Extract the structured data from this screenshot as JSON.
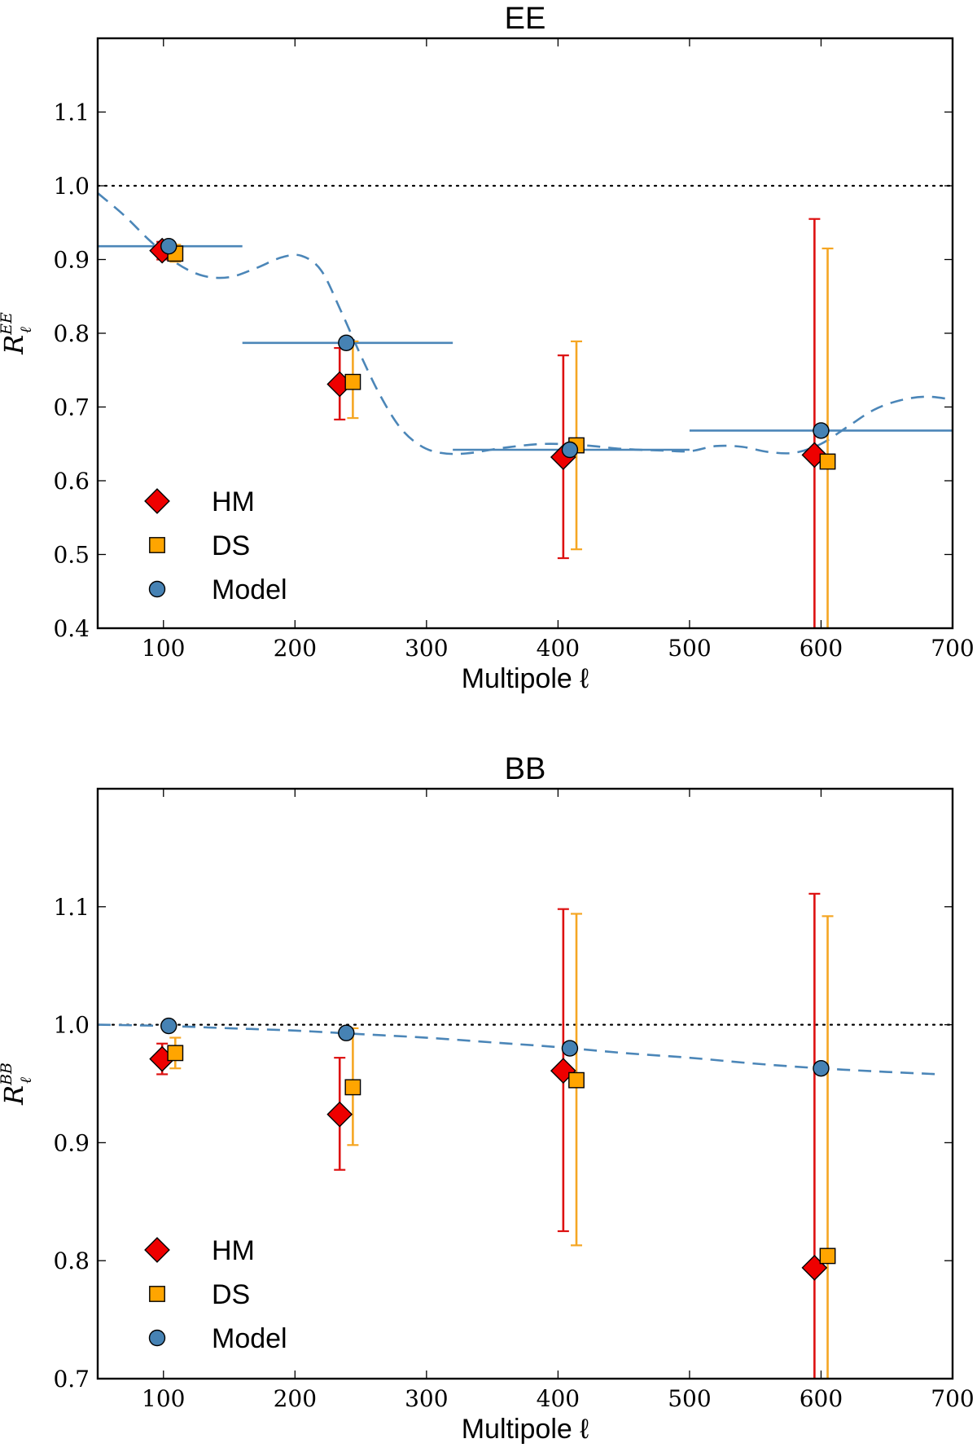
{
  "colors": {
    "hm": "#ee0000",
    "hm_err": "#dd1111",
    "ds": "#ffa500",
    "ds_err": "#f5a623",
    "model": "#4682b4",
    "model_line": "#4b86b8",
    "edge": "#000000"
  },
  "chart_data": [
    {
      "type": "scatter",
      "title": "EE",
      "xlabel": "Multipole ℓ",
      "ylabel": "R",
      "ylabel_sup": "EE",
      "ylabel_sub": "ℓ",
      "xlim": [
        50,
        700
      ],
      "ylim": [
        0.4,
        1.2
      ],
      "xticks": [
        100,
        200,
        300,
        400,
        500,
        600,
        700
      ],
      "xtick_labels": [
        "100",
        "200",
        "300",
        "400",
        "500",
        "600",
        "700"
      ],
      "yticks": [
        0.4,
        0.5,
        0.6,
        0.7,
        0.8,
        0.9,
        1.0,
        1.1
      ],
      "ytick_labels": [
        "0.4",
        "0.5",
        "0.6",
        "0.7",
        "0.8",
        "0.9",
        "1.0",
        "1.1"
      ],
      "reference_line": 1.0,
      "legend": [
        "HM",
        "DS",
        "Model"
      ],
      "legend_position": "lower-left",
      "series": [
        {
          "name": "HM",
          "marker": "diamond",
          "x": [
            99,
            234,
            404,
            595
          ],
          "y": [
            0.912,
            0.731,
            0.632,
            0.635
          ],
          "yerr_low": [
            0.9,
            0.683,
            0.495,
            0.395
          ],
          "yerr_high": [
            0.924,
            0.78,
            0.77,
            0.955
          ]
        },
        {
          "name": "DS",
          "marker": "square",
          "x": [
            109,
            244,
            414,
            605
          ],
          "y": [
            0.908,
            0.734,
            0.648,
            0.626
          ],
          "yerr_low": [
            0.897,
            0.685,
            0.507,
            0.395
          ],
          "yerr_high": [
            0.92,
            0.789,
            0.789,
            0.915
          ]
        },
        {
          "name": "Model",
          "marker": "circle",
          "x": [
            104,
            239,
            409,
            600
          ],
          "y": [
            0.918,
            0.787,
            0.642,
            0.668
          ],
          "bins": [
            [
              50,
              160
            ],
            [
              160,
              320
            ],
            [
              320,
              500
            ],
            [
              500,
              700
            ]
          ]
        }
      ],
      "model_curve": {
        "x": [
          50,
          70,
          90,
          110,
          130,
          150,
          170,
          190,
          205,
          220,
          235,
          250,
          265,
          280,
          295,
          310,
          330,
          360,
          390,
          420,
          450,
          480,
          500,
          520,
          540,
          560,
          580,
          600,
          620,
          640,
          660,
          680,
          700
        ],
        "y": [
          0.99,
          0.96,
          0.925,
          0.895,
          0.878,
          0.876,
          0.888,
          0.903,
          0.905,
          0.885,
          0.83,
          0.77,
          0.715,
          0.672,
          0.648,
          0.638,
          0.637,
          0.645,
          0.65,
          0.648,
          0.643,
          0.641,
          0.64,
          0.647,
          0.646,
          0.639,
          0.638,
          0.65,
          0.673,
          0.696,
          0.709,
          0.714,
          0.71
        ]
      }
    },
    {
      "type": "scatter",
      "title": "BB",
      "xlabel": "Multipole ℓ",
      "ylabel": "R",
      "ylabel_sup": "BB",
      "ylabel_sub": "ℓ",
      "xlim": [
        50,
        700
      ],
      "ylim": [
        0.7,
        1.2
      ],
      "xticks": [
        100,
        200,
        300,
        400,
        500,
        600,
        700
      ],
      "xtick_labels": [
        "100",
        "200",
        "300",
        "400",
        "500",
        "600",
        "700"
      ],
      "yticks": [
        0.7,
        0.8,
        0.9,
        1.0,
        1.1
      ],
      "ytick_labels": [
        "0.7",
        "0.8",
        "0.9",
        "1.0",
        "1.1"
      ],
      "reference_line": 1.0,
      "legend": [
        "HM",
        "DS",
        "Model"
      ],
      "legend_position": "lower-left",
      "series": [
        {
          "name": "HM",
          "marker": "diamond",
          "x": [
            99,
            234,
            404,
            595
          ],
          "y": [
            0.971,
            0.924,
            0.961,
            0.794
          ],
          "yerr_low": [
            0.958,
            0.877,
            0.825,
            0.695
          ],
          "yerr_high": [
            0.984,
            0.972,
            1.098,
            1.111
          ]
        },
        {
          "name": "DS",
          "marker": "square",
          "x": [
            109,
            244,
            414,
            605
          ],
          "y": [
            0.976,
            0.947,
            0.953,
            0.804
          ],
          "yerr_low": [
            0.963,
            0.898,
            0.813,
            0.695
          ],
          "yerr_high": [
            0.989,
            0.997,
            1.094,
            1.092
          ]
        },
        {
          "name": "Model",
          "marker": "circle",
          "x": [
            104,
            239,
            409,
            600
          ],
          "y": [
            0.999,
            0.993,
            0.98,
            0.963
          ]
        }
      ],
      "model_curve": {
        "x": [
          50,
          100,
          150,
          200,
          250,
          300,
          350,
          400,
          450,
          500,
          550,
          600,
          650,
          690
        ],
        "y": [
          1.0,
          0.999,
          0.997,
          0.995,
          0.992,
          0.989,
          0.985,
          0.981,
          0.976,
          0.972,
          0.967,
          0.963,
          0.96,
          0.958
        ]
      }
    }
  ]
}
